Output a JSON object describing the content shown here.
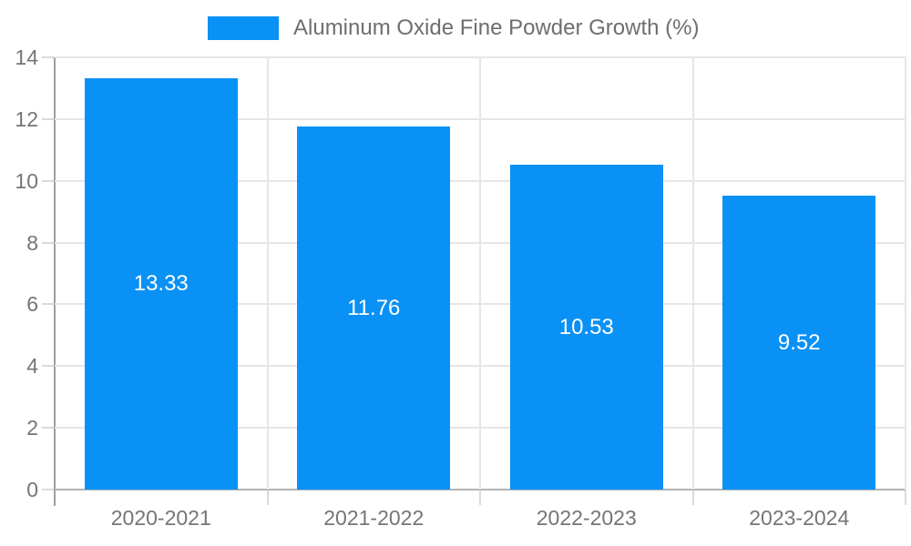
{
  "legend": {
    "label": "Aluminum Oxide Fine Powder Growth (%)"
  },
  "chart_data": {
    "type": "bar",
    "title": "",
    "categories": [
      "2020-2021",
      "2021-2022",
      "2022-2023",
      "2023-2024"
    ],
    "series": [
      {
        "name": "Aluminum Oxide Fine Powder Growth (%)",
        "values": [
          13.33,
          11.76,
          10.53,
          9.52
        ]
      }
    ],
    "value_labels": [
      "13.33",
      "11.76",
      "10.53",
      "9.52"
    ],
    "xlabel": "",
    "ylabel": "",
    "ylim": [
      0,
      14
    ],
    "yticks": [
      0,
      2,
      4,
      6,
      8,
      10,
      12,
      14
    ],
    "grid": true,
    "legend_position": "top-center",
    "colors": {
      "bar": "#0991F5",
      "value_label": "#ffffff",
      "tick_label": "#757575",
      "legend_text": "#6e6e6e",
      "grid": "#e6e6e6",
      "grid_tick": "#dadada",
      "axis": "#9e9e9e",
      "axis_x": "#b3b3b3"
    }
  }
}
